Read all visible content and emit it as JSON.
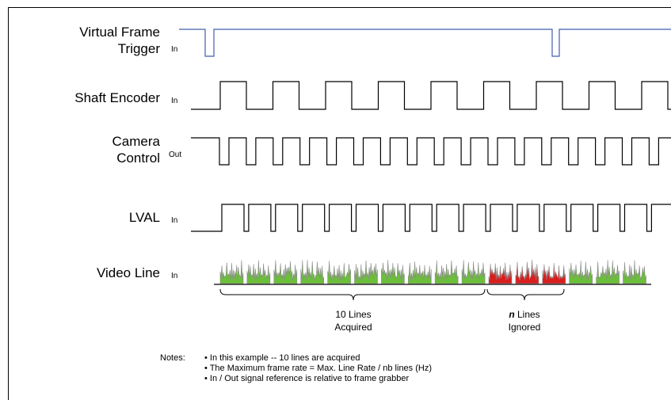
{
  "signals": [
    {
      "name_lines": [
        "Virtual Frame",
        "Trigger"
      ],
      "direction": "In"
    },
    {
      "name_lines": [
        "Shaft Encoder"
      ],
      "direction": "In"
    },
    {
      "name_lines": [
        "Camera",
        "Control"
      ],
      "direction": "Out"
    },
    {
      "name_lines": [
        "LVAL"
      ],
      "direction": "In"
    },
    {
      "name_lines": [
        "Video Line"
      ],
      "direction": "In"
    }
  ],
  "braces": {
    "acquired": {
      "line1": "10 Lines",
      "line2": "Acquired"
    },
    "ignored": {
      "line1_bold": "n",
      "line1_rest": " Lines",
      "line2": "Ignored"
    }
  },
  "notes": {
    "label": "Notes:",
    "items": [
      "• In this example -- 10 lines are acquired",
      "• The Maximum frame rate =  Max. Line Rate / nb lines (Hz)",
      "• In / Out signal reference is relative to frame grabber"
    ]
  },
  "colors": {
    "trigger": "#3f5fae",
    "acquired_fill": "#6bbf3a",
    "ignored_fill": "#d91e1e",
    "spike_outline": "#8a8a8a"
  },
  "diagram": {
    "acquired_line_count": 10,
    "ignored_line_count": 3,
    "lines_after_ignored": 3
  }
}
